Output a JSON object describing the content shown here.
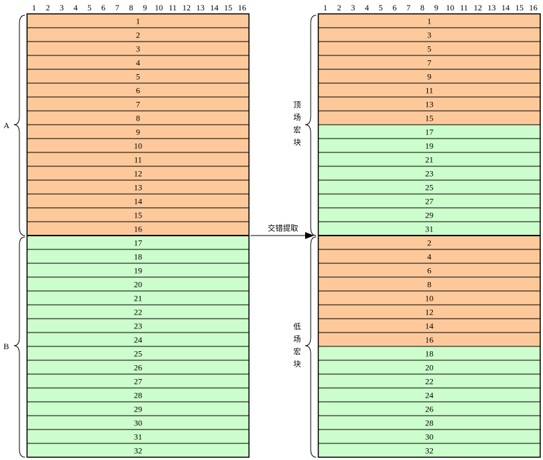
{
  "column_numbers": [
    "1",
    "2",
    "3",
    "4",
    "5",
    "6",
    "7",
    "8",
    "9",
    "10",
    "11",
    "12",
    "13",
    "14",
    "15",
    "16"
  ],
  "left_rows": [
    "1",
    "2",
    "3",
    "4",
    "5",
    "6",
    "7",
    "8",
    "9",
    "10",
    "11",
    "12",
    "13",
    "14",
    "15",
    "16",
    "17",
    "18",
    "19",
    "20",
    "21",
    "22",
    "23",
    "24",
    "25",
    "26",
    "27",
    "28",
    "29",
    "30",
    "31",
    "32"
  ],
  "right_rows": [
    "1",
    "3",
    "5",
    "7",
    "9",
    "11",
    "13",
    "15",
    "17",
    "19",
    "21",
    "23",
    "25",
    "27",
    "29",
    "31",
    "2",
    "4",
    "6",
    "8",
    "10",
    "12",
    "14",
    "16",
    "18",
    "20",
    "22",
    "24",
    "26",
    "28",
    "30",
    "32"
  ],
  "colors": {
    "orange": "#fdc99b",
    "green": "#ccfdcc",
    "line": "#000000"
  },
  "left_groups": {
    "a": "A",
    "b": "B"
  },
  "right_groups": {
    "top": [
      "顶",
      "场",
      "宏",
      "块"
    ],
    "bottom": [
      "低",
      "场",
      "宏",
      "块"
    ]
  },
  "arrow_label": "交错提取"
}
